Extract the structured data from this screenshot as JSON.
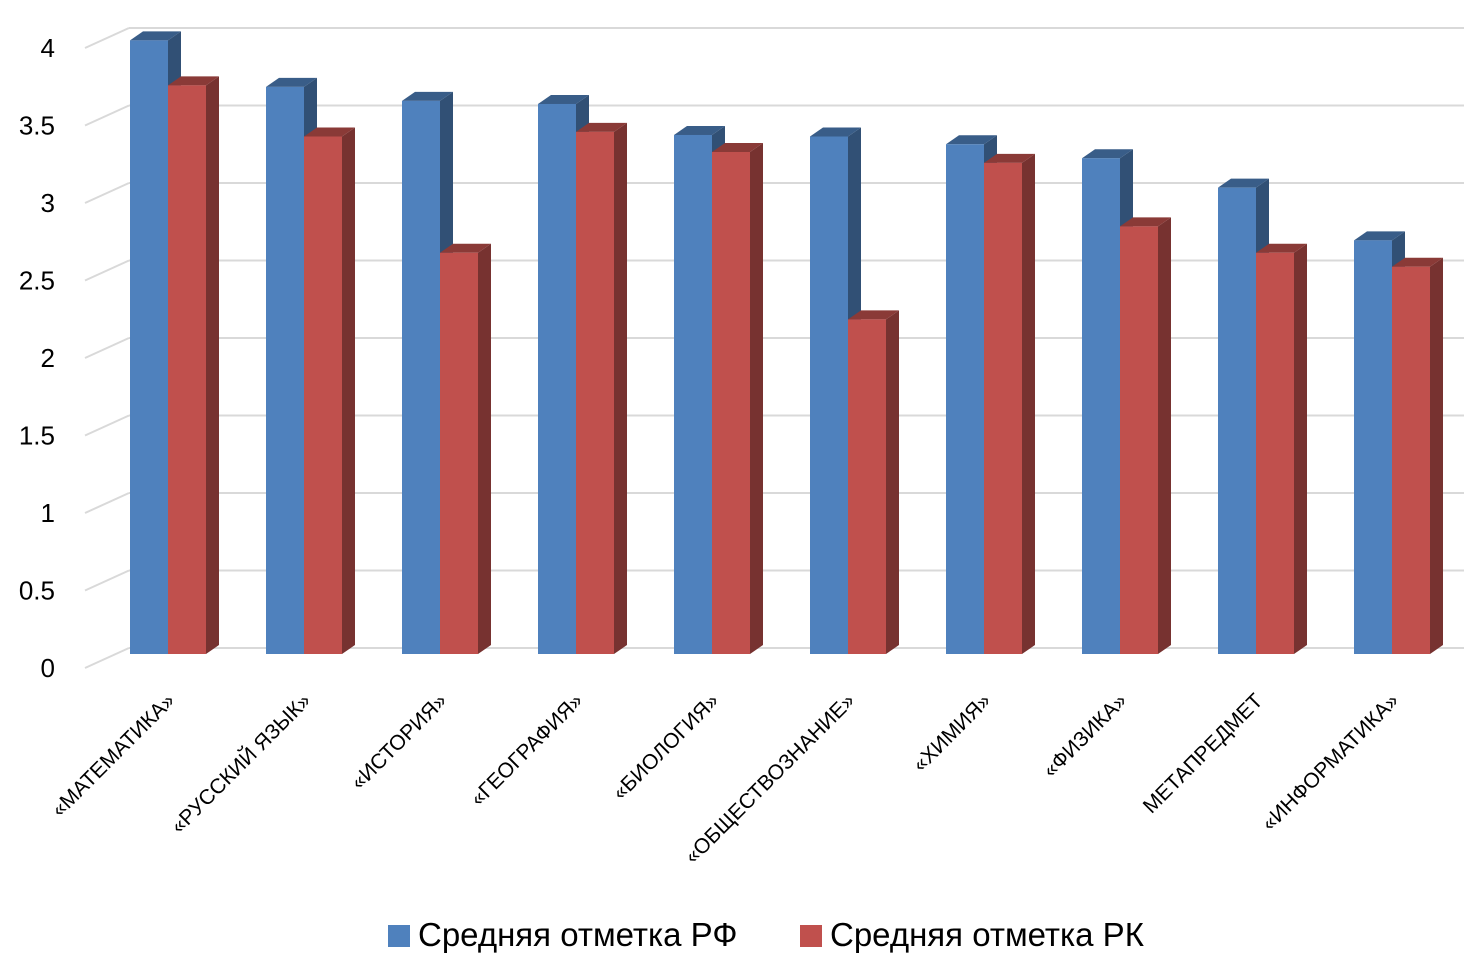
{
  "chart_data": {
    "type": "bar",
    "style": "3d-clustered-column",
    "categories": [
      "«МАТЕМАТИКА»",
      "«РУССКИЙ ЯЗЫК»",
      "«ИСТОРИЯ»",
      "«ГЕОГРАФИЯ»",
      "«БИОЛОГИЯ»",
      "«ОБЩЕСТВОЗНАНИЕ»",
      "«ХИМИЯ»",
      "«ФИЗИКА»",
      "МЕТАПРЕДМЕТ",
      "«ИНФОРМАТИКА»"
    ],
    "series": [
      {
        "name": "Средняя отметка РФ",
        "color": "#4F81BD",
        "values": [
          3.92,
          3.62,
          3.53,
          3.51,
          3.31,
          3.3,
          3.25,
          3.16,
          2.97,
          2.63
        ]
      },
      {
        "name": "Средняя отметка РК",
        "color": "#C0504D",
        "values": [
          3.63,
          3.3,
          2.55,
          3.33,
          3.2,
          2.12,
          3.13,
          2.72,
          2.55,
          2.46
        ]
      }
    ],
    "yticks": [
      "0",
      "0.5",
      "1",
      "1.5",
      "2",
      "2.5",
      "3",
      "3.5",
      "4"
    ],
    "ylim": [
      0,
      4
    ],
    "grid": true,
    "legend_position": "bottom"
  }
}
